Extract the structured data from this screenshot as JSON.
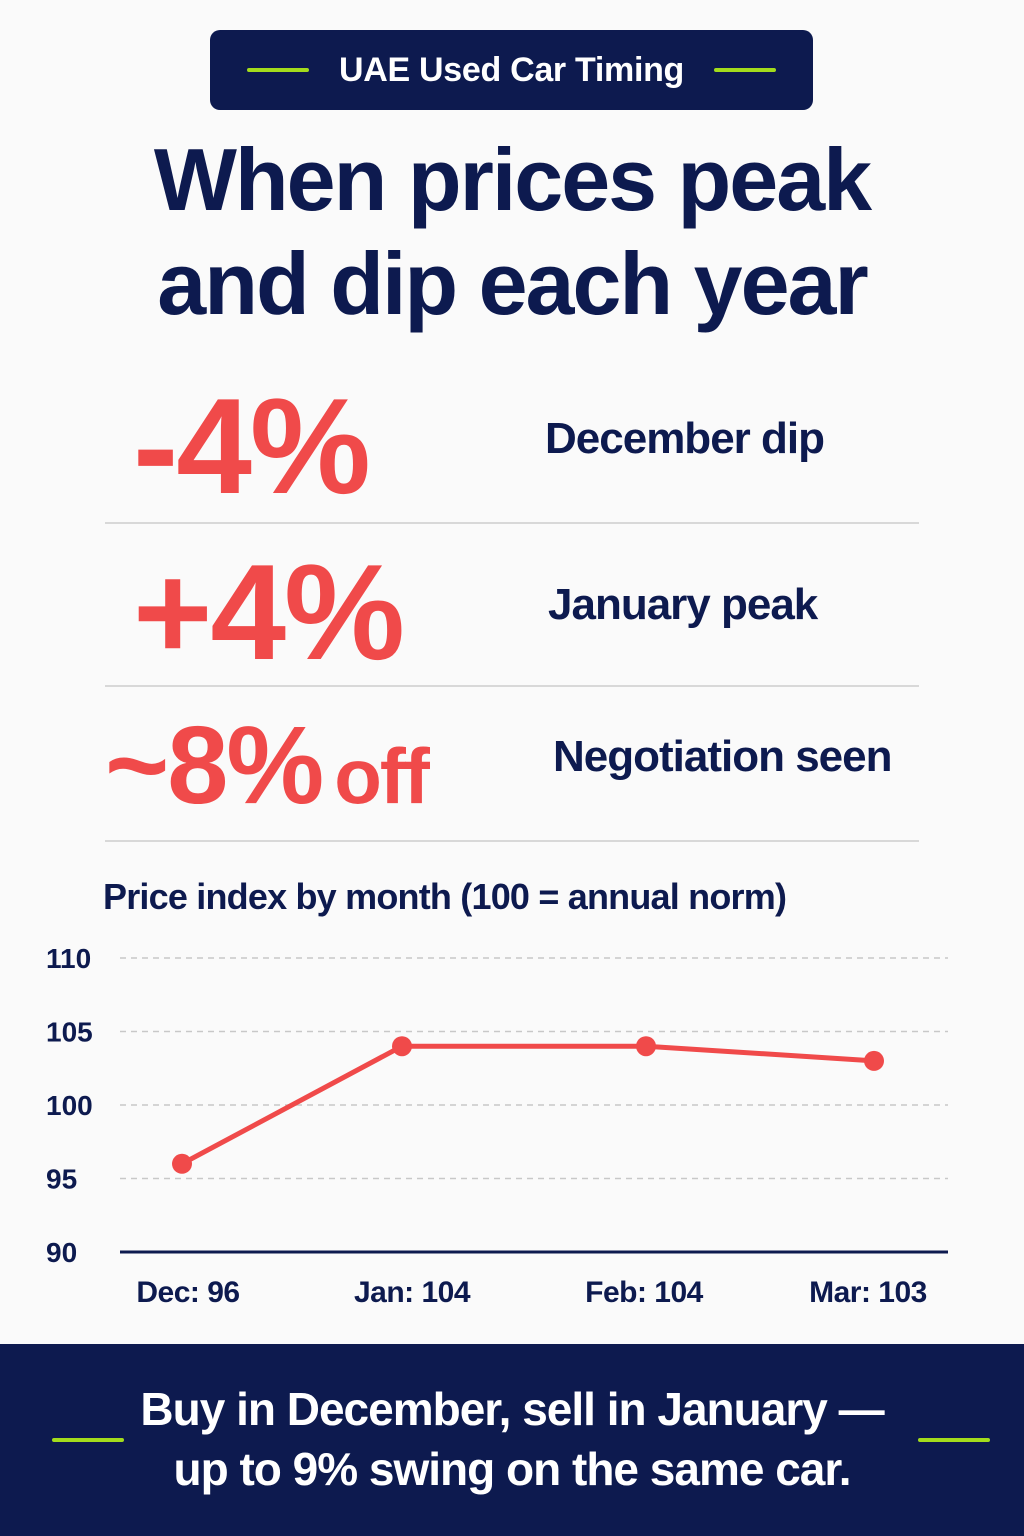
{
  "badge": {
    "text": "UAE Used Car Timing"
  },
  "headline": {
    "line1": "When prices peak",
    "line2": "and dip each year"
  },
  "stats": [
    {
      "value": "-4%",
      "label": "December dip"
    },
    {
      "value": "+4%",
      "label": "January peak"
    },
    {
      "value": "~8%",
      "suffix": "off",
      "label": "Negotiation seen"
    }
  ],
  "chart_data": {
    "type": "line",
    "title": "Price index by month (100 = annual norm)",
    "categories": [
      "Dec",
      "Jan",
      "Feb",
      "Mar"
    ],
    "tick_labels": [
      "Dec: 96",
      "Jan: 104",
      "Feb: 104",
      "Mar: 103"
    ],
    "values": [
      96,
      104,
      104,
      103
    ],
    "ylim": [
      90,
      110
    ],
    "yticks": [
      90,
      95,
      100,
      105,
      110
    ],
    "grid": true,
    "line_color": "#f04a4a",
    "axis_color": "#0d1a4f"
  },
  "footer": {
    "line1": "Buy in December, sell in January —",
    "line2": "up to 9% swing on the same car."
  },
  "colors": {
    "navy": "#0d1a4f",
    "red": "#f04a4a",
    "lime": "#a3dc1c"
  }
}
